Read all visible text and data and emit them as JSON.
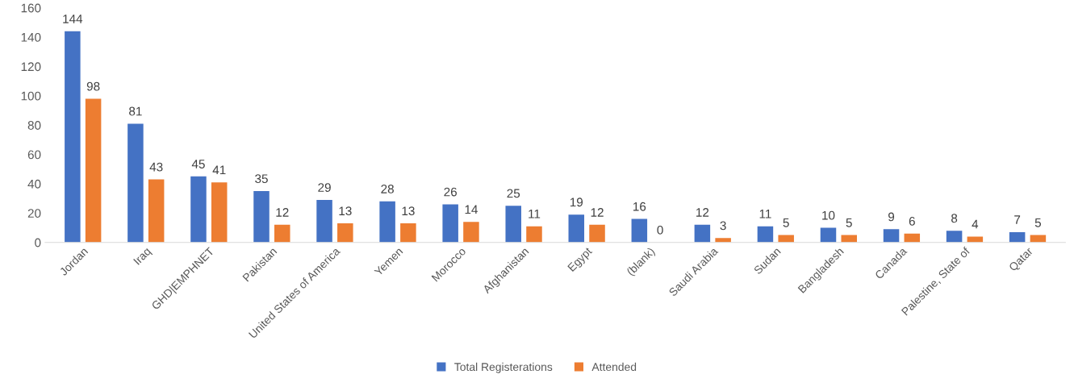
{
  "chart_data": {
    "type": "bar",
    "categories": [
      "Jordan",
      "Iraq",
      "GHD|EMPHNET",
      "Pakistan",
      "United States of America",
      "Yemen",
      "Morocco",
      "Afghanistan",
      "Egypt",
      "(blank)",
      "Saudi Arabia",
      "Sudan",
      "Bangladesh",
      "Canada",
      "Palestine, State of",
      "Qatar"
    ],
    "series": [
      {
        "name": "Total Registerations",
        "color": "#4472c4",
        "values": [
          144,
          81,
          45,
          35,
          29,
          28,
          26,
          25,
          19,
          16,
          12,
          11,
          10,
          9,
          8,
          7
        ]
      },
      {
        "name": "Attended",
        "color": "#ed7d31",
        "values": [
          98,
          43,
          41,
          12,
          13,
          13,
          14,
          11,
          12,
          0,
          3,
          5,
          5,
          6,
          4,
          5
        ]
      }
    ],
    "ylim": [
      0,
      160
    ],
    "yticks": [
      0,
      20,
      40,
      60,
      80,
      100,
      120,
      140,
      160
    ],
    "data_labels": true,
    "legend": "bottom",
    "grid": false
  }
}
